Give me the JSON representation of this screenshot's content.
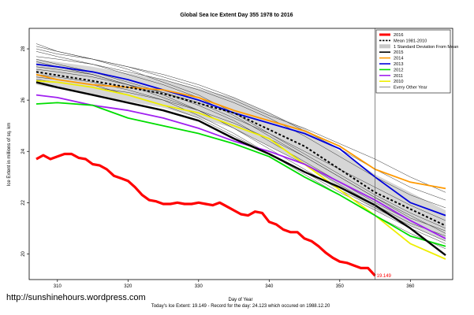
{
  "chart_data": {
    "type": "line",
    "title": "Global Sea Ice Extent Day 355 1978 to 2016",
    "xlabel": "Day of Year",
    "ylabel": "Ice Extent in millions of sq. km",
    "footer": "Today's Ice Extent: 19.149  -  Record for the day: 24.123 which occured on 1988.12.20",
    "watermark": "http://sunshinehours.wordpress.com",
    "xlim": [
      306,
      366
    ],
    "ylim": [
      19.0,
      28.8
    ],
    "x_ticks": [
      "310",
      "320",
      "330",
      "340",
      "350",
      "360"
    ],
    "x_tick_values": [
      310,
      320,
      330,
      340,
      350,
      360
    ],
    "y_ticks": [
      "20",
      "22",
      "24",
      "26",
      "28"
    ],
    "y_tick_values": [
      20,
      22,
      24,
      26,
      28
    ],
    "vline_x": 355,
    "end_label": "19.149",
    "end_label_value": 19.149,
    "legend_position": "top-right",
    "legend": [
      {
        "label": "2016",
        "color": "#ff0000",
        "style": "thick"
      },
      {
        "label": "Mean 1981-2010",
        "color": "#000000",
        "style": "dashed"
      },
      {
        "label": "1 Standard Deviation From Mean",
        "color": "#c8c8c8",
        "style": "band"
      },
      {
        "label": "2015",
        "color": "#000000",
        "style": "solid"
      },
      {
        "label": "2014",
        "color": "#ff9900",
        "style": "solid"
      },
      {
        "label": "2013",
        "color": "#0000dd",
        "style": "solid"
      },
      {
        "label": "2012",
        "color": "#00dd00",
        "style": "solid"
      },
      {
        "label": "2011",
        "color": "#a020f0",
        "style": "solid"
      },
      {
        "label": "2010",
        "color": "#eeee00",
        "style": "solid"
      },
      {
        "label": "Every Other Year",
        "color": "#444444",
        "style": "thin"
      }
    ],
    "mean": {
      "x": [
        307,
        315,
        325,
        335,
        345,
        355,
        365
      ],
      "y": [
        27.1,
        26.75,
        26.25,
        25.5,
        24.2,
        22.4,
        21.1
      ]
    },
    "std_band": {
      "x": [
        307,
        315,
        325,
        335,
        345,
        355,
        365
      ],
      "upper": [
        27.6,
        27.3,
        26.8,
        26.1,
        24.9,
        23.1,
        21.7
      ],
      "lower": [
        26.6,
        26.2,
        25.7,
        24.9,
        23.5,
        21.7,
        20.5
      ]
    },
    "series": [
      {
        "name": "2016",
        "color": "#ff0000",
        "width": 3.2,
        "x": [
          307,
          308,
          309,
          310,
          311,
          312,
          313,
          314,
          315,
          316,
          317,
          318,
          319,
          320,
          321,
          322,
          323,
          324,
          325,
          326,
          327,
          328,
          329,
          330,
          331,
          332,
          333,
          334,
          335,
          336,
          337,
          338,
          339,
          340,
          341,
          342,
          343,
          344,
          345,
          346,
          347,
          348,
          349,
          350,
          351,
          352,
          353,
          354,
          355
        ],
        "y": [
          23.7,
          23.85,
          23.7,
          23.8,
          23.9,
          23.9,
          23.75,
          23.7,
          23.5,
          23.45,
          23.3,
          23.05,
          22.95,
          22.85,
          22.6,
          22.3,
          22.1,
          22.05,
          21.95,
          21.95,
          22.0,
          21.95,
          21.95,
          22.0,
          21.95,
          21.9,
          22.0,
          21.85,
          21.7,
          21.55,
          21.5,
          21.65,
          21.6,
          21.25,
          21.15,
          20.95,
          20.85,
          20.85,
          20.6,
          20.5,
          20.3,
          20.05,
          19.85,
          19.7,
          19.65,
          19.55,
          19.45,
          19.45,
          19.149
        ]
      },
      {
        "name": "2015",
        "color": "#000000",
        "width": 2.4,
        "x": [
          307,
          310,
          315,
          320,
          325,
          330,
          335,
          340,
          345,
          350,
          355,
          360,
          365
        ],
        "y": [
          26.7,
          26.5,
          26.2,
          25.9,
          25.6,
          25.2,
          24.5,
          23.9,
          23.2,
          22.6,
          21.9,
          21.0,
          19.95
        ]
      },
      {
        "name": "2014",
        "color": "#ff9900",
        "width": 1.8,
        "x": [
          307,
          310,
          315,
          320,
          325,
          330,
          335,
          340,
          345,
          350,
          355,
          360,
          365
        ],
        "y": [
          27.0,
          26.8,
          26.6,
          26.5,
          26.4,
          26.1,
          25.6,
          25.2,
          24.8,
          24.2,
          23.3,
          22.8,
          22.55
        ]
      },
      {
        "name": "2013",
        "color": "#0000dd",
        "width": 1.8,
        "x": [
          307,
          310,
          315,
          320,
          325,
          330,
          335,
          340,
          345,
          350,
          355,
          360,
          365
        ],
        "y": [
          27.4,
          27.3,
          27.1,
          26.8,
          26.4,
          26.0,
          25.5,
          25.1,
          24.7,
          24.1,
          23.0,
          22.0,
          21.5
        ]
      },
      {
        "name": "2012",
        "color": "#00dd00",
        "width": 1.8,
        "x": [
          307,
          310,
          315,
          320,
          325,
          330,
          335,
          340,
          345,
          350,
          355,
          360,
          365
        ],
        "y": [
          25.85,
          25.9,
          25.8,
          25.3,
          25.0,
          24.7,
          24.3,
          23.8,
          23.0,
          22.3,
          21.5,
          20.7,
          20.3
        ]
      },
      {
        "name": "2011",
        "color": "#a020f0",
        "width": 1.8,
        "x": [
          307,
          310,
          315,
          320,
          325,
          330,
          335,
          340,
          345,
          350,
          355,
          360,
          365
        ],
        "y": [
          26.2,
          26.1,
          25.8,
          25.6,
          25.3,
          24.9,
          24.4,
          24.0,
          23.5,
          22.8,
          22.1,
          21.3,
          20.6
        ]
      },
      {
        "name": "2010",
        "color": "#eeee00",
        "width": 1.8,
        "x": [
          307,
          310,
          315,
          320,
          325,
          330,
          335,
          340,
          345,
          350,
          355,
          360,
          365
        ],
        "y": [
          26.75,
          26.7,
          26.5,
          26.2,
          25.8,
          25.5,
          25.0,
          24.5,
          23.5,
          22.5,
          21.5,
          20.4,
          19.8
        ]
      }
    ],
    "other_years": [
      {
        "y": [
          28.2,
          27.9,
          27.6,
          27.2,
          26.7,
          26.2,
          25.5,
          24.7,
          23.9,
          23.1,
          22.3,
          21.6,
          21.0
        ]
      },
      {
        "y": [
          27.9,
          27.7,
          27.4,
          27.0,
          26.6,
          26.1,
          25.4,
          24.6,
          23.8,
          23.0,
          22.2,
          21.5,
          20.8
        ]
      },
      {
        "y": [
          27.6,
          27.4,
          27.1,
          26.7,
          26.3,
          25.9,
          25.3,
          24.7,
          24.0,
          23.3,
          22.6,
          21.9,
          21.3
        ]
      },
      {
        "y": [
          27.3,
          27.2,
          27.0,
          26.6,
          26.2,
          25.6,
          24.9,
          24.1,
          23.3,
          22.5,
          21.8,
          21.1,
          20.5
        ]
      },
      {
        "y": [
          27.0,
          26.9,
          26.7,
          26.4,
          26.0,
          25.4,
          24.7,
          23.9,
          23.1,
          22.3,
          21.5,
          20.8,
          20.2
        ]
      },
      {
        "y": [
          28.0,
          27.8,
          27.6,
          27.3,
          27.0,
          26.6,
          26.1,
          25.5,
          24.8,
          24.1,
          23.3,
          22.6,
          22.1
        ]
      },
      {
        "y": [
          27.7,
          27.6,
          27.4,
          27.1,
          26.8,
          26.4,
          25.9,
          25.3,
          24.6,
          23.8,
          23.0,
          22.3,
          21.8
        ]
      },
      {
        "y": [
          26.8,
          26.7,
          26.5,
          26.3,
          26.0,
          25.6,
          25.1,
          24.5,
          23.8,
          23.0,
          22.2,
          21.4,
          20.9
        ]
      },
      {
        "y": [
          27.5,
          27.3,
          27.0,
          26.6,
          26.1,
          25.6,
          24.9,
          24.2,
          23.5,
          22.7,
          21.9,
          21.2,
          20.7
        ]
      },
      {
        "y": [
          28.1,
          27.9,
          27.6,
          27.3,
          26.9,
          26.5,
          26.0,
          25.4,
          24.9,
          24.3,
          23.7,
          23.0,
          22.4
        ]
      },
      {
        "y": [
          27.2,
          27.1,
          26.9,
          26.6,
          26.3,
          25.8,
          25.2,
          24.4,
          23.6,
          22.8,
          22.0,
          21.3,
          20.6
        ]
      },
      {
        "y": [
          26.9,
          26.8,
          26.6,
          26.2,
          25.8,
          25.3,
          24.6,
          23.9,
          23.2,
          22.4,
          21.7,
          21.0,
          20.4
        ]
      }
    ],
    "other_years_x": [
      307,
      310,
      315,
      320,
      325,
      330,
      335,
      340,
      345,
      350,
      355,
      360,
      365
    ]
  }
}
